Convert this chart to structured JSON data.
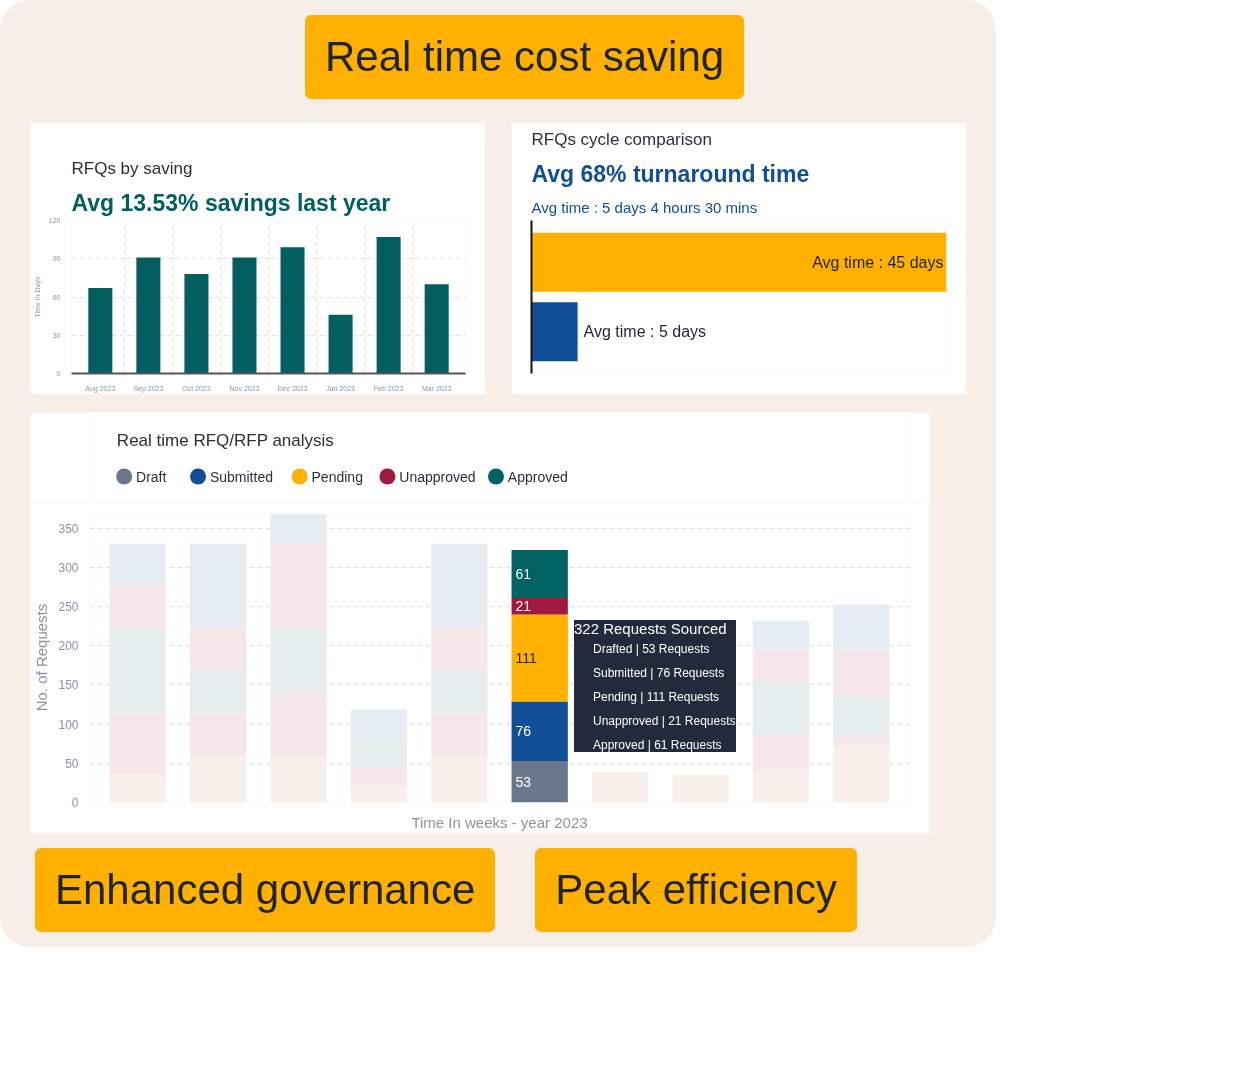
{
  "chart_data": [
    {
      "type": "bar",
      "title": "RFQs by saving",
      "subtitle": "Avg 13.53% savings last year",
      "ylabel": "Time In Days",
      "categories": [
        "Aug 2023",
        "Sep 2023",
        "Oct 2023",
        "Nov 2023",
        "Dec 2023",
        "Jan 2023",
        "Feb 2023",
        "Mar 2023"
      ],
      "values": [
        67,
        91,
        78,
        91,
        99,
        46,
        107,
        70
      ],
      "color": "#035f5f",
      "ylim": [
        0,
        120
      ],
      "yticks": [
        0,
        30,
        60,
        90,
        120
      ],
      "grid": true,
      "annotations": [
        "Real time cost saving"
      ]
    },
    {
      "type": "bar",
      "orientation": "horizontal",
      "title": "RFQs cycle comparison",
      "subtitle": "Avg 68% turnaround time",
      "annotations": [
        "Avg time : 5 days 4 hours 30 mins",
        "Peak efficiency"
      ],
      "categories": [
        null,
        null
      ],
      "values": [
        45,
        5
      ],
      "xlim": [
        0,
        45
      ],
      "tick_labels": false,
      "colors": [
        "#ffb000",
        "#124e96"
      ],
      "value_labels": [
        "Avg time : 45 days",
        "Avg time : 5 days"
      ]
    },
    {
      "type": "bar",
      "stacked": true,
      "title": "Real time RFQ/RFP analysis",
      "xlabel": "Time In weeks - year 2023",
      "ylabel": "No. of Requests",
      "categories": [
        null,
        null,
        null,
        null,
        null,
        null,
        null,
        null,
        null,
        null
      ],
      "ylim": [
        0,
        370
      ],
      "yticks": [
        0,
        50,
        100,
        150,
        200,
        250,
        300,
        350
      ],
      "grid": "y",
      "legend": "top left",
      "series": [
        {
          "name": "Draft",
          "color": "#6b778d",
          "colors": [
            "#f9efea",
            "#f9efea",
            "#f9efea",
            "#f9efea",
            "#f9efea",
            "#6b778d",
            "#f9efea",
            "#f9efea",
            "#f9efea",
            "#f9efea"
          ],
          "values": [
            35,
            59,
            59,
            21,
            59,
            53,
            39,
            35,
            41,
            71
          ],
          "value_labels": [
            null,
            null,
            null,
            null,
            null,
            "53",
            null,
            null,
            null,
            null
          ]
        },
        {
          "name": "Submitted",
          "color": "#124e96",
          "colors": [
            "#f5e7ea",
            "#f5e7ea",
            "#f5e7ea",
            "#f5e7ea",
            "#f5e7ea",
            "#124e96",
            "#f5e7ea",
            "#f5e7ea",
            "#f5e7ea",
            "#f5e7ea"
          ],
          "values": [
            79,
            55,
            83,
            23,
            55,
            76,
            null,
            null,
            45,
            15
          ],
          "value_labels": [
            null,
            null,
            null,
            null,
            null,
            "76",
            null,
            null,
            null,
            null
          ]
        },
        {
          "name": "Pending",
          "color": "#ffb000",
          "colors": [
            "#e5eeed",
            "#e5eeed",
            "#e5eeed",
            "#e5eeed",
            "#e5eeed",
            "#ffb000",
            "#e5eeed",
            "#e5eeed",
            "#e5eeed",
            "#e5eeed"
          ],
          "values": [
            108,
            55,
            80,
            35,
            55,
            111,
            null,
            null,
            69,
            49
          ],
          "value_labels": [
            null,
            null,
            null,
            null,
            null,
            "111",
            null,
            null,
            null,
            null
          ]
        },
        {
          "name": "Unapproved",
          "color": "#a0193e",
          "colors": [
            "#f5e7ea",
            "#f5e7ea",
            "#f5e7ea",
            "#f5e7ea",
            "#f5e7ea",
            "#a0193e",
            "#f5e7ea",
            "#f5e7ea",
            "#f5e7ea",
            "#f5e7ea"
          ],
          "values": [
            56,
            56,
            108,
            0,
            56,
            21,
            null,
            null,
            40,
            60
          ],
          "value_labels": [
            null,
            null,
            null,
            null,
            null,
            "21",
            null,
            null,
            null,
            null
          ]
        },
        {
          "name": "Approved",
          "color": "#006262",
          "colors": [
            "#e5ecf4",
            "#e5ecf4",
            "#e5ecf4",
            "#e5ecf4",
            "#e5ecf4",
            "#006262",
            "#e5ecf4",
            "#e5ecf4",
            "#e5ecf4",
            "#e5ecf4"
          ],
          "values": [
            52,
            105,
            38,
            40,
            105,
            61,
            null,
            null,
            37,
            57
          ],
          "value_labels": [
            null,
            null,
            null,
            null,
            null,
            "61",
            null,
            null,
            null,
            null
          ]
        }
      ],
      "annotations": [
        "322 Requests Sourced",
        "Drafted | 53 Requests",
        "Submitted | 76 Requests",
        "Pending | 111 Requests",
        "Unapproved | 21 Requests",
        "Approved | 61 Requests",
        "Enhanced governance"
      ]
    }
  ]
}
